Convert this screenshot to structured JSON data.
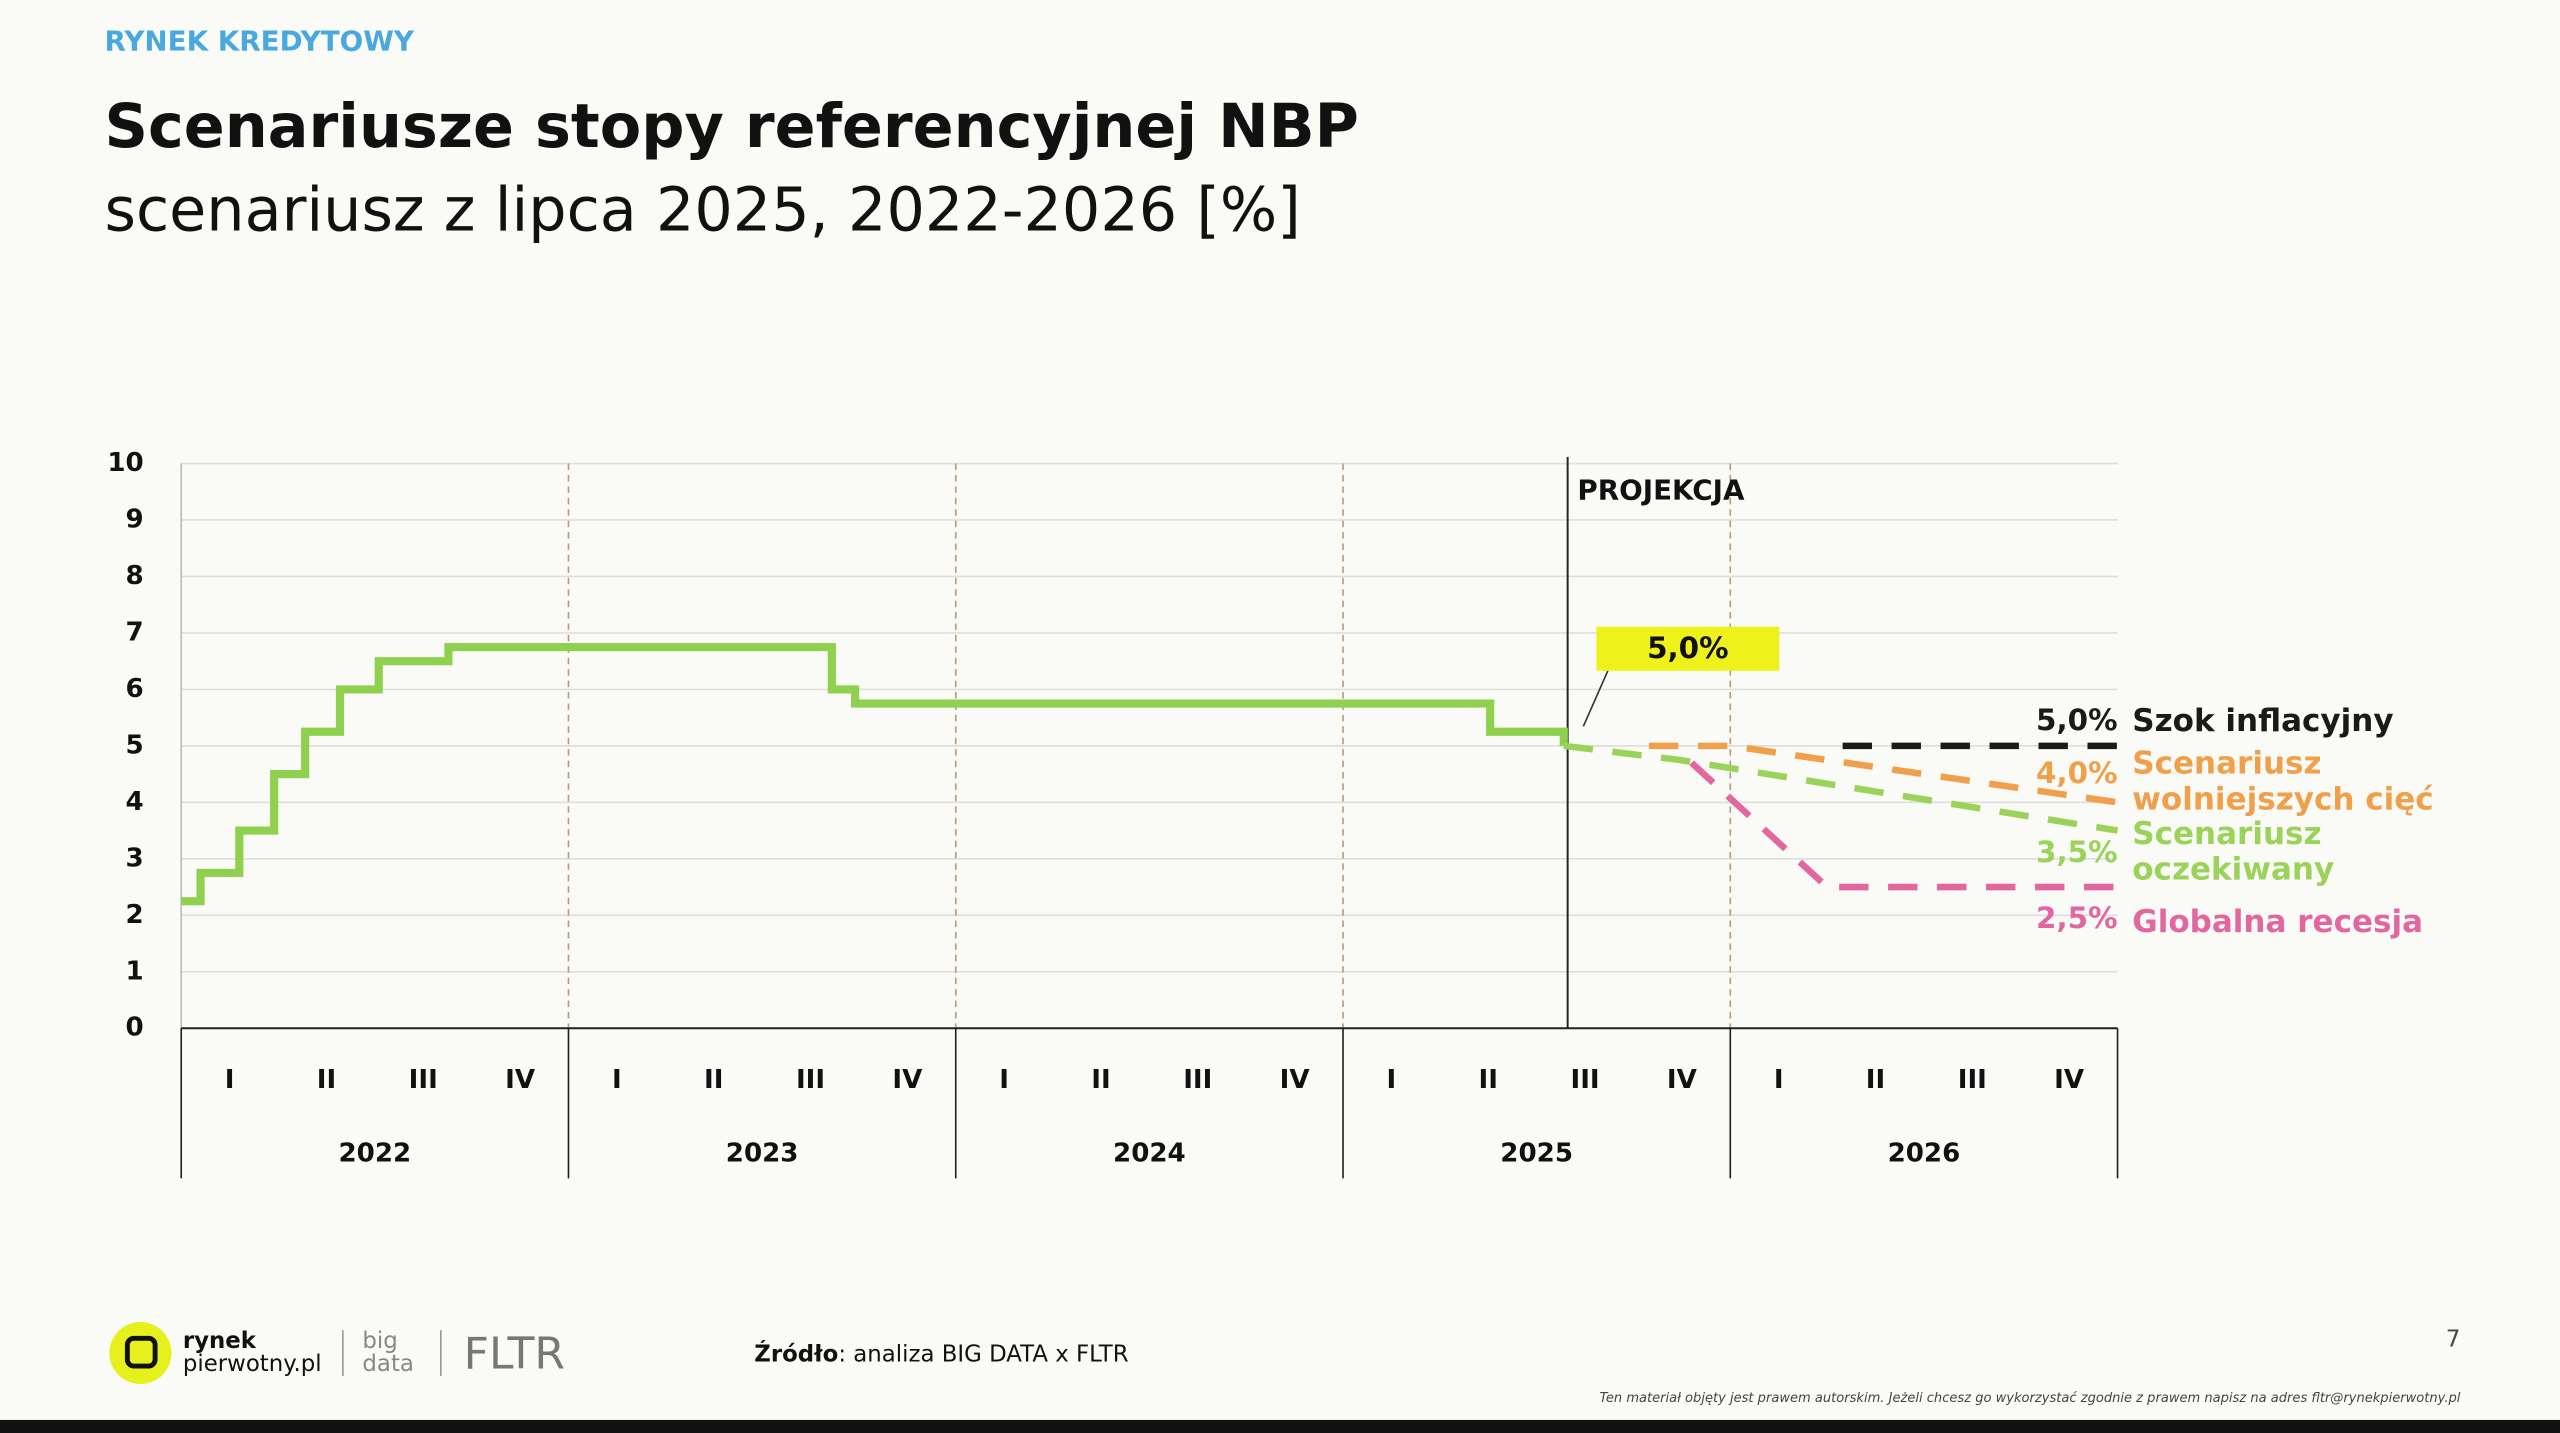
{
  "header": {
    "section": "RYNEK KREDYTOWY"
  },
  "chart_data": {
    "type": "line",
    "title": "Scenariusze stopy referencyjnej NBP",
    "subtitle": "scenariusz z lipca 2025, 2022-2026 [%]",
    "quarters": [
      "I",
      "II",
      "III",
      "IV"
    ],
    "years": [
      "2022",
      "2023",
      "2024",
      "2025",
      "2026"
    ],
    "xlim": [
      2022,
      2027
    ],
    "ylim": [
      0,
      10
    ],
    "yticks": [
      0,
      1,
      2,
      3,
      4,
      5,
      6,
      7,
      8,
      9,
      10
    ],
    "grid": true,
    "annotation": {
      "text": "PROJEKCJA",
      "x": 2025.58
    },
    "series": [
      {
        "color": "#8fd14f",
        "step": true,
        "dashed": false,
        "x": [
          2022.0,
          2022.05,
          2022.15,
          2022.24,
          2022.32,
          2022.41,
          2022.51,
          2022.69,
          2023.68,
          2023.74,
          2025.38,
          2025.57
        ],
        "values": [
          2.25,
          2.75,
          3.5,
          4.5,
          5.25,
          6.0,
          6.5,
          6.75,
          6.0,
          5.75,
          5.25,
          5.0
        ],
        "value_labels": [
          null,
          null,
          null,
          null,
          null,
          null,
          null,
          null,
          null,
          null,
          null,
          "5,0%"
        ]
      },
      {
        "name": "Szok inflacyjny",
        "color": "#1a1a1a",
        "step": false,
        "dashed": true,
        "x": [
          2026.29,
          2027
        ],
        "values": [
          5.0,
          5.0
        ],
        "value_labels": [
          null,
          "5,0%"
        ]
      },
      {
        "name": "Scenariusz wolniejszych cięć",
        "color": "#f0a04b",
        "step": false,
        "dashed": true,
        "x": [
          2025.79,
          2026.0,
          2027
        ],
        "values": [
          5.0,
          5.0,
          4.0
        ],
        "value_labels": [
          null,
          null,
          "4,0%"
        ]
      },
      {
        "name": "Scenariusz oczekiwany",
        "color": "#9bd35a",
        "step": false,
        "dashed": true,
        "x": [
          2025.57,
          2025.87,
          2027
        ],
        "values": [
          5.0,
          4.75,
          3.5
        ],
        "value_labels": [
          null,
          null,
          "3,5%"
        ]
      },
      {
        "name": "Globalna recesja",
        "color": "#e3679f",
        "step": false,
        "dashed": true,
        "x": [
          2025.9,
          2026.25,
          2027
        ],
        "values": [
          4.7,
          2.5,
          2.5
        ],
        "value_labels": [
          null,
          null,
          "2,5%"
        ]
      }
    ]
  },
  "footer": {
    "logo_top": "rynek",
    "logo_bottom": "pierwotny.pl",
    "big": "big",
    "data": "data",
    "fltr": "FLTR",
    "source_label": "Źródło",
    "source_text": ": analiza BIG DATA x FLTR",
    "page": "7",
    "disclaimer": "Ten materiał objęty jest prawem autorskim. Jeżeli chcesz go wykorzystać zgodnie z prawem napisz na adres fltr@rynekpierwotny.pl"
  }
}
